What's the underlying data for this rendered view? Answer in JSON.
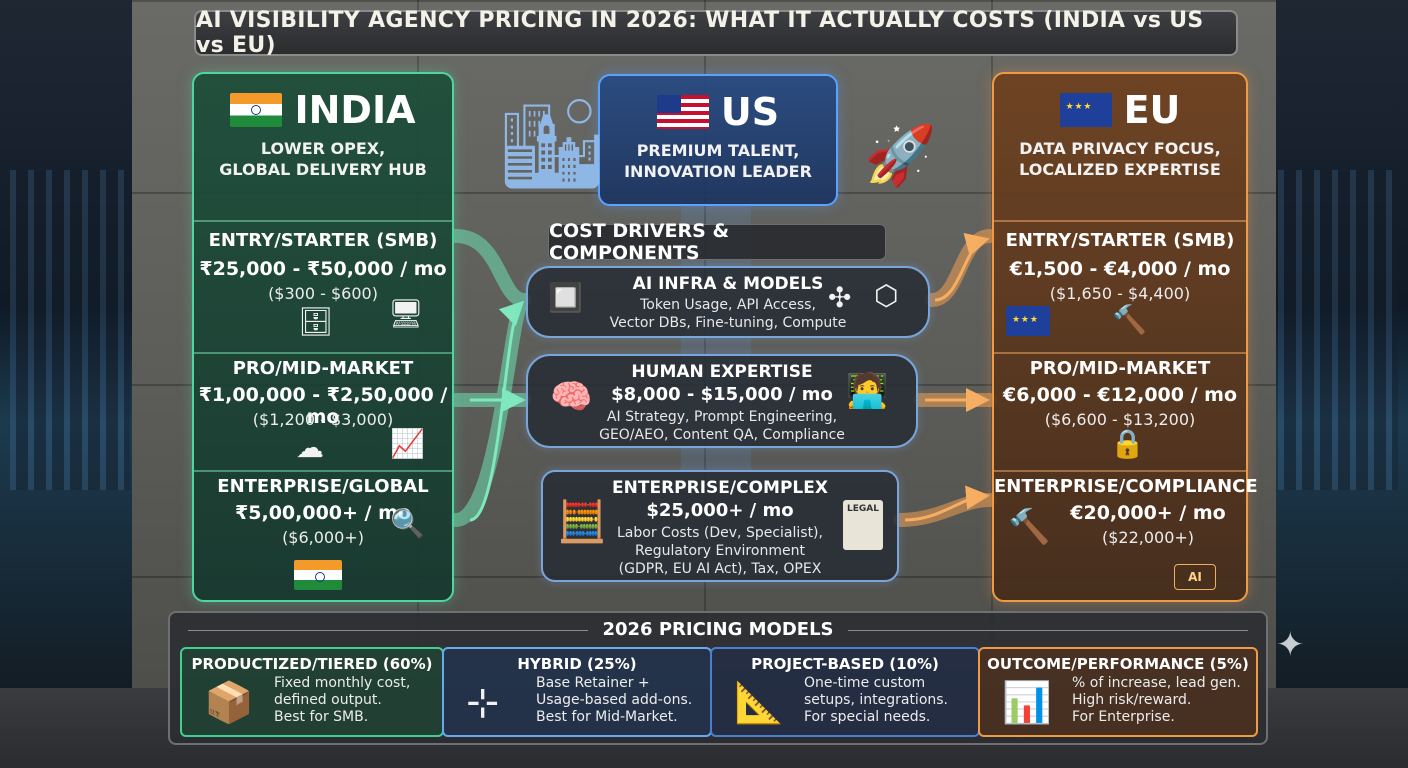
{
  "title": "AI VISIBILITY AGENCY PRICING IN 2026: WHAT IT ACTUALLY COSTS (INDIA vs US vs EU)",
  "colors": {
    "india": "#4fd6a0",
    "us": "#5aa2ff",
    "eu": "#f09a44"
  },
  "regions": {
    "india": {
      "name": "INDIA",
      "tagline": [
        "LOWER OPEX,",
        "GLOBAL DELIVERY HUB"
      ],
      "tiers": [
        {
          "label": "ENTRY/STARTER (SMB)",
          "price": "₹25,000 - ₹50,000 / mo",
          "usd": "($300 - $600)"
        },
        {
          "label": "PRO/MID-MARKET",
          "price": "₹1,00,000 - ₹2,50,000 / mo",
          "usd": "($1,200 - $3,000)"
        },
        {
          "label": "ENTERPRISE/GLOBAL",
          "price": "₹5,00,000+ / mo",
          "usd": "($6,000+)"
        }
      ]
    },
    "us": {
      "name": "US",
      "tagline": [
        "PREMIUM TALENT,",
        "INNOVATION LEADER"
      ]
    },
    "eu": {
      "name": "EU",
      "tagline": [
        "DATA PRIVACY FOCUS,",
        "LOCALIZED EXPERTISE"
      ],
      "tiers": [
        {
          "label": "ENTRY/STARTER (SMB)",
          "price": "€1,500 - €4,000 / mo",
          "usd": "($1,650 - $4,400)"
        },
        {
          "label": "PRO/MID-MARKET",
          "price": "€6,000 - €12,000 / mo",
          "usd": "($6,600 - $13,200)"
        },
        {
          "label": "ENTERPRISE/COMPLIANCE",
          "price": "€20,000+ / mo",
          "usd": "($22,000+)"
        }
      ]
    }
  },
  "drivers": {
    "heading": "COST DRIVERS & COMPONENTS",
    "items": [
      {
        "title": "AI INFRA & MODELS",
        "price": "",
        "desc": [
          "Token Usage, API Access,",
          "Vector DBs, Fine-tuning, Compute"
        ]
      },
      {
        "title": "HUMAN EXPERTISE",
        "price": "$8,000 - $15,000 / mo",
        "desc": [
          "AI Strategy, Prompt Engineering,",
          "GEO/AEO, Content QA, Compliance"
        ]
      },
      {
        "title": "ENTERPRISE/COMPLEX",
        "price": "$25,000+ / mo",
        "desc": [
          "Labor Costs (Dev, Specialist),",
          "Regulatory Environment",
          "(GDPR, EU AI Act), Tax, OPEX"
        ]
      }
    ]
  },
  "models": {
    "heading": "2026 PRICING MODELS",
    "items": [
      {
        "title": "PRODUCTIZED/TIERED (60%)",
        "share": 60,
        "desc": [
          "Fixed monthly cost,",
          "defined output.",
          "Best for SMB."
        ],
        "icon": "box-icon"
      },
      {
        "title": "HYBRID (25%)",
        "share": 25,
        "desc": [
          "Base Retainer +",
          "Usage-based add-ons.",
          "Best for Mid-Market."
        ],
        "icon": "network-icon"
      },
      {
        "title": "PROJECT-BASED (10%)",
        "share": 10,
        "desc": [
          "One-time custom",
          "setups, integrations.",
          "For special needs."
        ],
        "icon": "blueprint-icon"
      },
      {
        "title": "OUTCOME/PERFORMANCE (5%)",
        "share": 5,
        "desc": [
          "% of increase, lead gen.",
          "High risk/reward.",
          "For Enterprise."
        ],
        "icon": "growth-chart-icon"
      }
    ]
  },
  "icon_labels": {
    "legal_doc": "LEGAL",
    "ai_badge": "AI"
  }
}
